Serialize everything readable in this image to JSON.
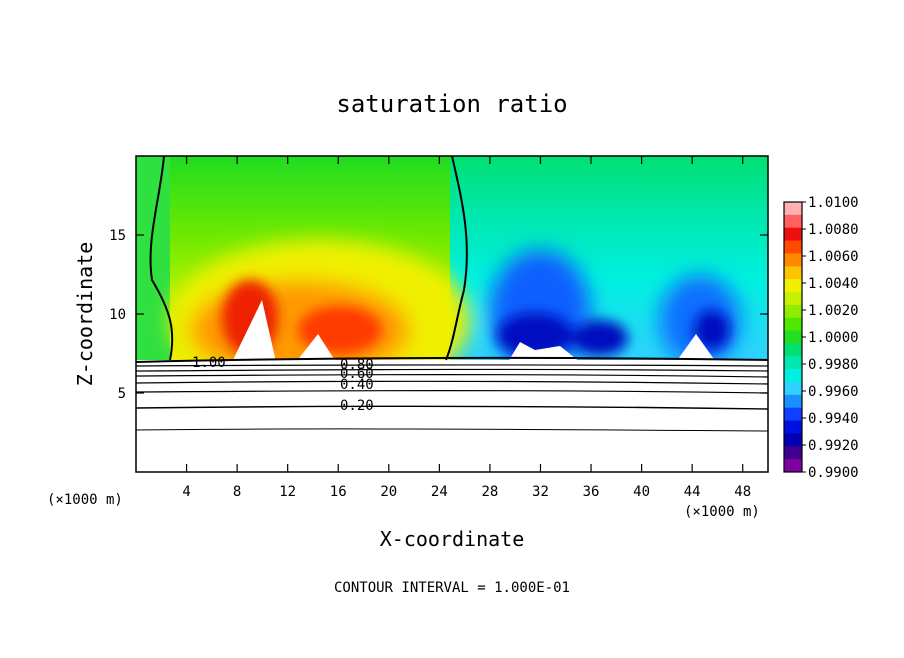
{
  "chart_data": {
    "type": "heatmap",
    "title": "saturation ratio",
    "xlabel": "X-coordinate",
    "ylabel": "Z-coordinate",
    "x_unit": "(×1000 m)",
    "xlim": [
      0,
      50
    ],
    "ylim": [
      0,
      20
    ],
    "x_ticks": [
      "4",
      "8",
      "12",
      "16",
      "20",
      "24",
      "28",
      "32",
      "36",
      "40",
      "44",
      "48"
    ],
    "y_ticks": [
      "5",
      "10",
      "15"
    ],
    "x_tick_values": [
      4,
      8,
      12,
      16,
      20,
      24,
      28,
      32,
      36,
      40,
      44,
      48
    ],
    "y_tick_values": [
      5,
      10,
      15
    ],
    "colorbar": {
      "labels": [
        "1.0100",
        "1.0080",
        "1.0060",
        "1.0040",
        "1.0020",
        "1.0000",
        "0.9980",
        "0.9960",
        "0.9940",
        "0.9920",
        "0.9900"
      ],
      "colors": [
        "#ffb0b0",
        "#ff6060",
        "#ee1010",
        "#ff4a00",
        "#ff8a00",
        "#ffc400",
        "#f0f000",
        "#c8f000",
        "#90ec00",
        "#50e800",
        "#20e020",
        "#00e070",
        "#00e8b0",
        "#00f0e0",
        "#30d0ff",
        "#1890ff",
        "#1040ff",
        "#0010e0",
        "#0000b0",
        "#400090",
        "#8000a0"
      ]
    },
    "contour_labels": [
      "1.00",
      "0.80",
      "0.60",
      "0.40",
      "0.20"
    ],
    "footer": "CONTOUR INTERVAL = 1.000E-01",
    "grid": false,
    "legend": "colorbar-right"
  }
}
